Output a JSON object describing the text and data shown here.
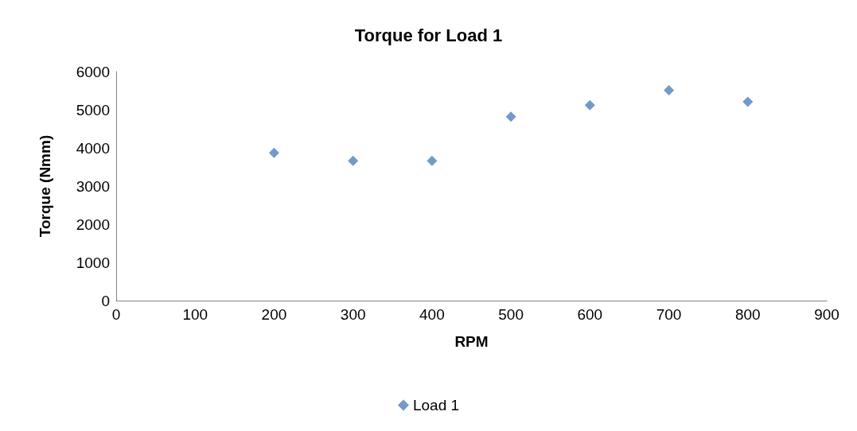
{
  "chart_data": {
    "type": "scatter",
    "title": "Torque for Load 1",
    "xlabel": "RPM",
    "ylabel": "Torque (Nmm)",
    "x": [
      200,
      300,
      400,
      500,
      600,
      700,
      800
    ],
    "series": [
      {
        "name": "Load 1",
        "color": "#4f81bd",
        "values": [
          3870,
          3660,
          3660,
          4820,
          5120,
          5510,
          5210
        ]
      }
    ],
    "xlim": [
      0,
      900
    ],
    "xticks": [
      0,
      100,
      200,
      300,
      400,
      500,
      600,
      700,
      800,
      900
    ],
    "ylim": [
      0,
      6000
    ],
    "yticks": [
      0,
      1000,
      2000,
      3000,
      4000,
      5000,
      6000
    ],
    "grid": false,
    "legend": "bottom",
    "marker": "diamond"
  }
}
